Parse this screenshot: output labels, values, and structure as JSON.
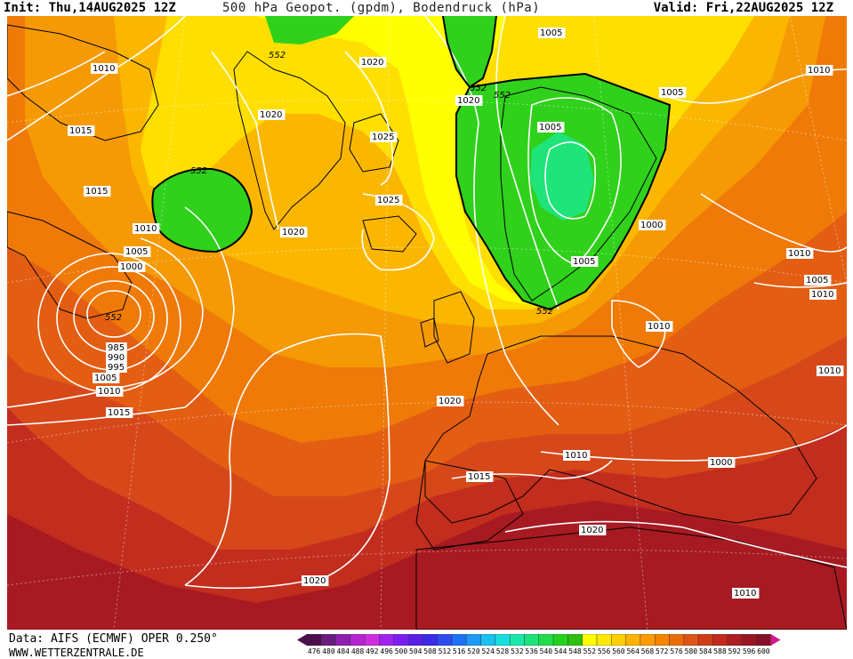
{
  "header": {
    "init": "Init: Thu,14AUG2025 12Z",
    "title": "500 hPa Geopot. (gpdm), Bodendruck (hPa)",
    "valid": "Valid: Fri,22AUG2025 12Z"
  },
  "footer": {
    "source": "Data: AIFS (ECMWF) OPER 0.250°",
    "website": "WWW.WETTERZENTRALE.DE"
  },
  "colorbar": {
    "ticks": [
      "476",
      "480",
      "484",
      "488",
      "492",
      "496",
      "500",
      "504",
      "508",
      "512",
      "516",
      "520",
      "524",
      "528",
      "532",
      "536",
      "540",
      "544",
      "548",
      "552",
      "556",
      "560",
      "564",
      "568",
      "572",
      "576",
      "580",
      "584",
      "588",
      "592",
      "596",
      "600"
    ],
    "colors": [
      "#4b0f4e",
      "#6a1b80",
      "#8e1fb0",
      "#b424d0",
      "#d12de0",
      "#a020f0",
      "#7a1ff0",
      "#5a20e8",
      "#3b2be6",
      "#2c4cf0",
      "#1f72f5",
      "#1c9af5",
      "#18c2f0",
      "#18dedd",
      "#19e8a8",
      "#1ee27a",
      "#22dc4a",
      "#24d21e",
      "#2fc00f",
      "#ffff00",
      "#ffe800",
      "#ffd000",
      "#ffb300",
      "#ff9a00",
      "#f48400",
      "#ea6d0a",
      "#dd5514",
      "#cf3d16",
      "#c12a1c",
      "#ad1c20",
      "#991524",
      "#850f28"
    ]
  },
  "map": {
    "colors": {
      "deep_red": "#a71a22",
      "red": "#c22d1e",
      "red_orange": "#d6481a",
      "orange_red": "#e35d12",
      "orange": "#ef7a08",
      "light_orange": "#f59a05",
      "amber": "#fbb700",
      "yellow": "#ffdf00",
      "lemon": "#ffff00",
      "green": "#2fd11a",
      "green_light": "#1ee47a",
      "contour": "#ffffff",
      "coast": "#000000"
    },
    "isobar_labels": [
      "1010",
      "1015",
      "1015",
      "1010",
      "1005",
      "1000",
      "995",
      "990",
      "985",
      "1005",
      "1010",
      "1015",
      "1020",
      "1020",
      "1020",
      "1025",
      "1025",
      "1020",
      "1020",
      "1020",
      "1015",
      "1010",
      "1005",
      "1000",
      "1005",
      "1005",
      "1005",
      "1010",
      "1010",
      "1005",
      "1010",
      "1010",
      "1000",
      "1020",
      "1010",
      "1010"
    ],
    "geopotential_labels": [
      "552",
      "552",
      "552",
      "552",
      "552",
      "552"
    ]
  }
}
